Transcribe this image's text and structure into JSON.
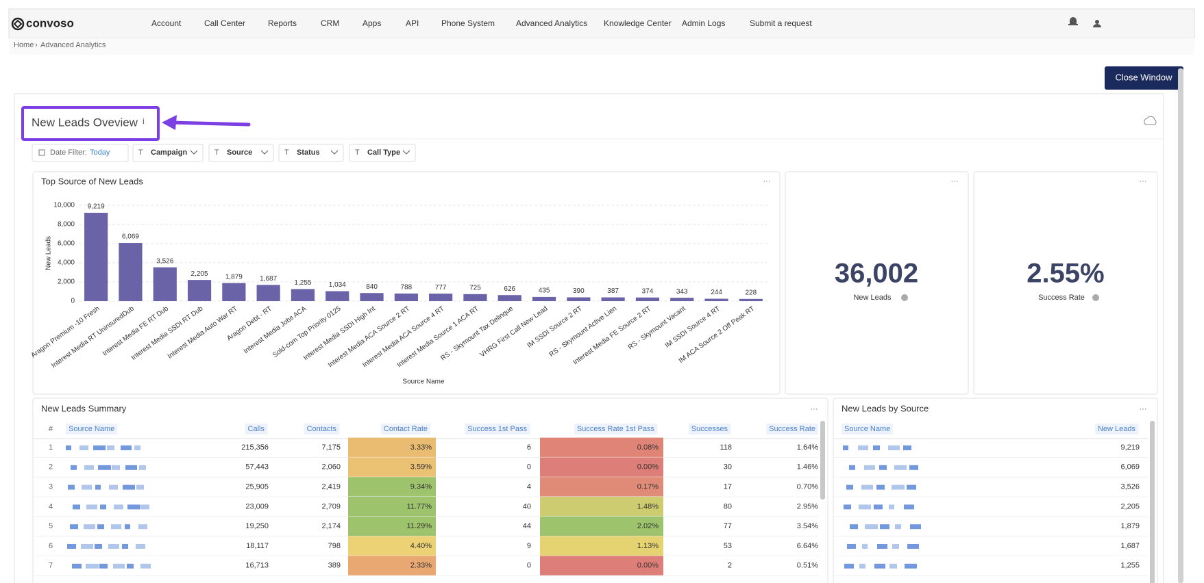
{
  "nav": {
    "brand": "convoso",
    "items": [
      "Account",
      "Call Center",
      "Reports",
      "CRM",
      "Apps",
      "API",
      "Phone System",
      "Advanced Analytics",
      "Knowledge Center",
      "Admin Logs",
      "Submit a request"
    ]
  },
  "breadcrumb": [
    "Home",
    "Advanced Analytics"
  ],
  "close_button": "Close Window",
  "dashboard": {
    "title": "New Leads Oveview",
    "info": "i",
    "date_filter": {
      "label": "Date Filter:",
      "value": "Today"
    },
    "filters": [
      "Campaign",
      "Source",
      "Status",
      "Call Type"
    ]
  },
  "chart_data": {
    "type": "bar",
    "title": "Top Source of New Leads",
    "x_label": "Source Name",
    "y_label": "New Leads",
    "color": "#6b63a8",
    "grid": true,
    "categories": [
      "Aragon Premium -10 Fresh",
      "Interest Media RT UninsuredDub",
      "Interest Media FE RT Dub",
      "Interest Media SSDI RT Dub",
      "Interest Media Auto War RT",
      "Aragon Debt - RT",
      "Interest Media Jobs ACA",
      "Sold-com Top Priority 0125",
      "Interest Media SSDI High Int",
      "Interest Media ACA Source 2 RT",
      "Interest Media ACA Source 4 RT",
      "Interest Media Source 1 ACA RT",
      "RS - Skymount Tax Delinque",
      "VHRG First Call New Lead",
      "IM SSDI Source 2 RT",
      "RS - Skymount Active Lien",
      "Interest Media FE Source 2 RT",
      "RS - Skymount Vacant",
      "IM SSDI Source 4 RT",
      "IM ACA Source 2 Off Peak RT"
    ],
    "values": [
      9219,
      6069,
      3526,
      2205,
      1879,
      1687,
      1255,
      1034,
      840,
      788,
      777,
      725,
      626,
      435,
      390,
      387,
      374,
      343,
      244,
      228
    ],
    "value_labels": [
      "9,219",
      "6,069",
      "3,526",
      "2,205",
      "1,879",
      "1,687",
      "1,255",
      "1,034",
      "840",
      "788",
      "777",
      "725",
      "626",
      "435",
      "390",
      "387",
      "374",
      "343",
      "244",
      "228"
    ],
    "ylim": [
      0,
      10000
    ],
    "yticks": [
      0,
      {
        "value": 2000,
        "label": "2,000"
      },
      {
        "value": 4000,
        "label": "4,000"
      },
      {
        "value": 6000,
        "label": "6,000"
      },
      {
        "value": 8000,
        "label": "8,000"
      },
      {
        "value": 10000,
        "label": "10,000"
      }
    ]
  },
  "kpis": [
    {
      "value": "36,002",
      "label": "New Leads"
    },
    {
      "value": "2.55%",
      "label": "Success Rate"
    }
  ],
  "summary": {
    "title": "New Leads Summary",
    "headers": [
      "#",
      "Source Name",
      "Calls",
      "Contacts",
      "Contact Rate",
      "Success 1st Pass",
      "Success Rate 1st Pass",
      "Successes",
      "Success Rate"
    ],
    "rows": [
      [
        "1",
        "215,356",
        "7,175",
        "3.33%",
        "6",
        "0.08%",
        "118",
        "1.64%"
      ],
      [
        "2",
        "57,443",
        "2,060",
        "3.59%",
        "0",
        "0.00%",
        "30",
        "1.46%"
      ],
      [
        "3",
        "25,905",
        "2,419",
        "9.34%",
        "4",
        "0.17%",
        "17",
        "0.70%"
      ],
      [
        "4",
        "23,009",
        "2,709",
        "11.77%",
        "40",
        "1.48%",
        "80",
        "2.95%"
      ],
      [
        "5",
        "19,250",
        "2,174",
        "11.29%",
        "44",
        "2.02%",
        "77",
        "3.54%"
      ],
      [
        "6",
        "18,117",
        "798",
        "4.40%",
        "9",
        "1.13%",
        "53",
        "6.64%"
      ],
      [
        "7",
        "16,713",
        "389",
        "2.33%",
        "0",
        "0.00%",
        "2",
        "0.51%"
      ]
    ]
  },
  "by_source": {
    "title": "New Leads by Source",
    "headers": [
      "Source Name",
      "New Leads"
    ],
    "rows": [
      "9,219",
      "6,069",
      "3,526",
      "2,205",
      "1,879",
      "1,687",
      "1,255"
    ]
  }
}
